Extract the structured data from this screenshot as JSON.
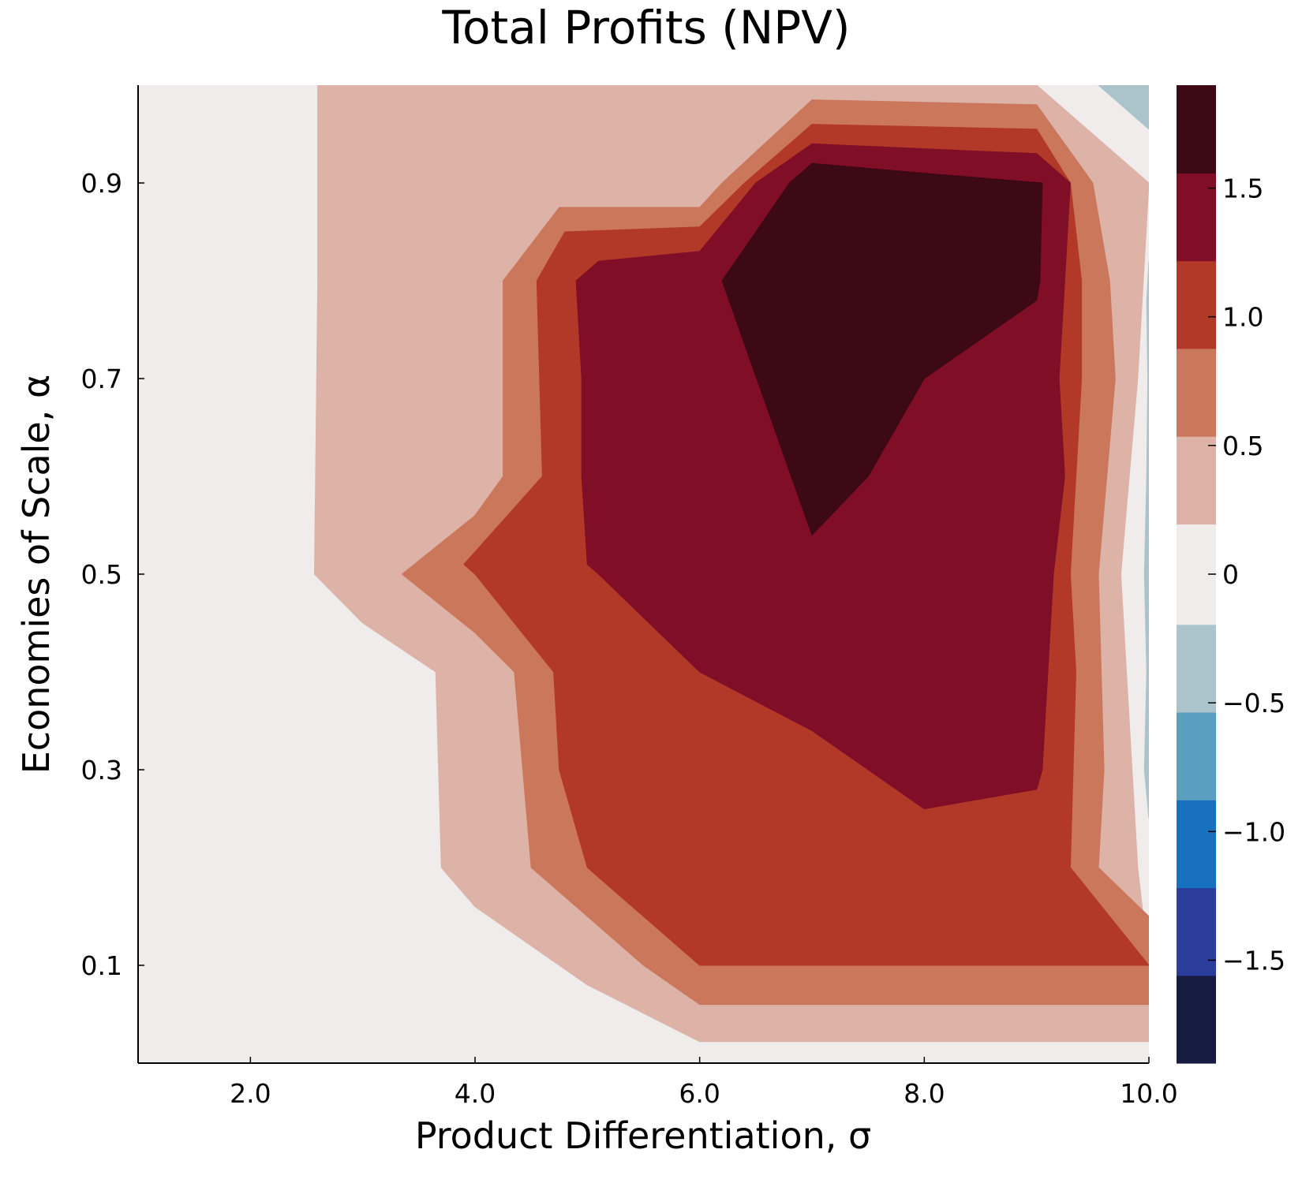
{
  "chart_data": {
    "type": "contour",
    "title": "Total Profits (NPV)",
    "xlabel": "Product Differentiation, σ",
    "ylabel": "Economies of Scale, α",
    "xlim": [
      1.0,
      10.0
    ],
    "ylim": [
      0.0,
      1.0
    ],
    "x_ticks": [
      {
        "value": 2.0,
        "label": "2.0"
      },
      {
        "value": 4.0,
        "label": "4.0"
      },
      {
        "value": 6.0,
        "label": "6.0"
      },
      {
        "value": 8.0,
        "label": "8.0"
      },
      {
        "value": 10.0,
        "label": "10.0"
      }
    ],
    "y_ticks": [
      {
        "value": 0.1,
        "label": "0.1"
      },
      {
        "value": 0.3,
        "label": "0.3"
      },
      {
        "value": 0.5,
        "label": "0.5"
      },
      {
        "value": 0.7,
        "label": "0.7"
      },
      {
        "value": 0.9,
        "label": "0.9"
      }
    ],
    "colorbar": {
      "range": [
        -1.9,
        1.9
      ],
      "levels": [
        {
          "min": -1.9,
          "max": -1.559,
          "color": "#161b40"
        },
        {
          "min": -1.559,
          "max": -1.218,
          "color": "#2b3d9b"
        },
        {
          "min": -1.218,
          "max": -0.877,
          "color": "#1771be"
        },
        {
          "min": -0.877,
          "max": -0.536,
          "color": "#5b9fc0"
        },
        {
          "min": -0.536,
          "max": -0.195,
          "color": "#abc3ca"
        },
        {
          "min": -0.195,
          "max": 0.195,
          "color": "#efeceb"
        },
        {
          "min": 0.195,
          "max": 0.536,
          "color": "#ddb2a7"
        },
        {
          "min": 0.536,
          "max": 0.877,
          "color": "#cb775c"
        },
        {
          "min": 0.877,
          "max": 1.218,
          "color": "#b23828"
        },
        {
          "min": 1.218,
          "max": 1.559,
          "color": "#800e27"
        },
        {
          "min": 1.559,
          "max": 1.9,
          "color": "#3d0914"
        }
      ],
      "ticks": [
        {
          "value": 1.5,
          "label": "1.5"
        },
        {
          "value": 1.0,
          "label": "1.0"
        },
        {
          "value": 0.5,
          "label": "0.5"
        },
        {
          "value": 0.0,
          "label": "0"
        },
        {
          "value": -0.5,
          "label": "−0.5"
        },
        {
          "value": -1.0,
          "label": "−1.0"
        },
        {
          "value": -1.5,
          "label": "−1.5"
        }
      ]
    },
    "regions": [
      {
        "name": "level-0-background",
        "color": "#efeceb",
        "points": [
          [
            1.0,
            0.0
          ],
          [
            10.0,
            0.0
          ],
          [
            10.0,
            1.0
          ],
          [
            1.0,
            1.0
          ]
        ]
      },
      {
        "name": "level-0.5-band",
        "color": "#ddb2a7",
        "points": [
          [
            2.6,
            1.0
          ],
          [
            9.0,
            1.0
          ],
          [
            10.0,
            0.9
          ],
          [
            9.9,
            0.7
          ],
          [
            9.75,
            0.5
          ],
          [
            9.9,
            0.2
          ],
          [
            10.0,
            0.1
          ],
          [
            10.0,
            0.022
          ],
          [
            6.0,
            0.022
          ],
          [
            5.0,
            0.08
          ],
          [
            4.0,
            0.16
          ],
          [
            3.7,
            0.2
          ],
          [
            3.65,
            0.4
          ],
          [
            3.0,
            0.45
          ],
          [
            2.57,
            0.5
          ],
          [
            2.6,
            0.8
          ]
        ]
      },
      {
        "name": "level-0.75-band",
        "color": "#cb775c",
        "points": [
          [
            6.0,
            0.875
          ],
          [
            6.2,
            0.9
          ],
          [
            7.0,
            0.985
          ],
          [
            9.0,
            0.98
          ],
          [
            9.5,
            0.9
          ],
          [
            9.65,
            0.8
          ],
          [
            9.7,
            0.7
          ],
          [
            9.55,
            0.5
          ],
          [
            9.6,
            0.3
          ],
          [
            9.55,
            0.2
          ],
          [
            10.0,
            0.15
          ],
          [
            10.0,
            0.06
          ],
          [
            6.0,
            0.06
          ],
          [
            5.5,
            0.1
          ],
          [
            4.5,
            0.2
          ],
          [
            4.35,
            0.4
          ],
          [
            4.0,
            0.44
          ],
          [
            3.35,
            0.5
          ],
          [
            4.0,
            0.56
          ],
          [
            4.25,
            0.6
          ],
          [
            4.25,
            0.8
          ],
          [
            4.75,
            0.875
          ]
        ]
      },
      {
        "name": "level-1.0-band",
        "color": "#b23828",
        "points": [
          [
            4.8,
            0.85
          ],
          [
            6.0,
            0.855
          ],
          [
            6.4,
            0.9
          ],
          [
            7.0,
            0.96
          ],
          [
            9.0,
            0.955
          ],
          [
            9.3,
            0.9
          ],
          [
            9.4,
            0.8
          ],
          [
            9.4,
            0.7
          ],
          [
            9.3,
            0.5
          ],
          [
            9.35,
            0.4
          ],
          [
            9.3,
            0.2
          ],
          [
            10.0,
            0.1
          ],
          [
            6.0,
            0.1
          ],
          [
            5.0,
            0.2
          ],
          [
            4.75,
            0.3
          ],
          [
            4.7,
            0.4
          ],
          [
            4.0,
            0.5
          ],
          [
            3.9,
            0.51
          ],
          [
            4.6,
            0.6
          ],
          [
            4.55,
            0.8
          ]
        ]
      },
      {
        "name": "level-1.25-band",
        "color": "#800e27",
        "points": [
          [
            4.9,
            0.8
          ],
          [
            5.1,
            0.82
          ],
          [
            6.0,
            0.83
          ],
          [
            6.5,
            0.9
          ],
          [
            7.0,
            0.94
          ],
          [
            9.0,
            0.93
          ],
          [
            9.3,
            0.9
          ],
          [
            9.25,
            0.8
          ],
          [
            9.2,
            0.7
          ],
          [
            9.25,
            0.6
          ],
          [
            9.15,
            0.5
          ],
          [
            9.1,
            0.4
          ],
          [
            9.05,
            0.3
          ],
          [
            9.0,
            0.28
          ],
          [
            8.0,
            0.26
          ],
          [
            7.0,
            0.34
          ],
          [
            6.0,
            0.4
          ],
          [
            5.1,
            0.5
          ],
          [
            5.0,
            0.51
          ],
          [
            4.95,
            0.6
          ],
          [
            4.95,
            0.7
          ]
        ]
      },
      {
        "name": "level-1.5-band",
        "color": "#3d0914",
        "points": [
          [
            6.2,
            0.8
          ],
          [
            6.8,
            0.9
          ],
          [
            7.0,
            0.92
          ],
          [
            8.0,
            0.91
          ],
          [
            9.05,
            0.9
          ],
          [
            9.03,
            0.8
          ],
          [
            9.0,
            0.78
          ],
          [
            8.0,
            0.7
          ],
          [
            7.5,
            0.6
          ],
          [
            7.0,
            0.54
          ]
        ]
      },
      {
        "name": "level-neg-band",
        "color": "#abc3ca",
        "points": [
          [
            9.55,
            1.0
          ],
          [
            10.0,
            1.0
          ],
          [
            10.0,
            0.955
          ]
        ]
      },
      {
        "name": "level-neg-band-right",
        "color": "#abc3ca",
        "points": [
          [
            10.0,
            0.82
          ],
          [
            9.98,
            0.78
          ],
          [
            9.99,
            0.7
          ],
          [
            9.98,
            0.6
          ],
          [
            9.96,
            0.5
          ],
          [
            9.98,
            0.4
          ],
          [
            9.96,
            0.3
          ],
          [
            10.0,
            0.25
          ]
        ]
      }
    ]
  }
}
